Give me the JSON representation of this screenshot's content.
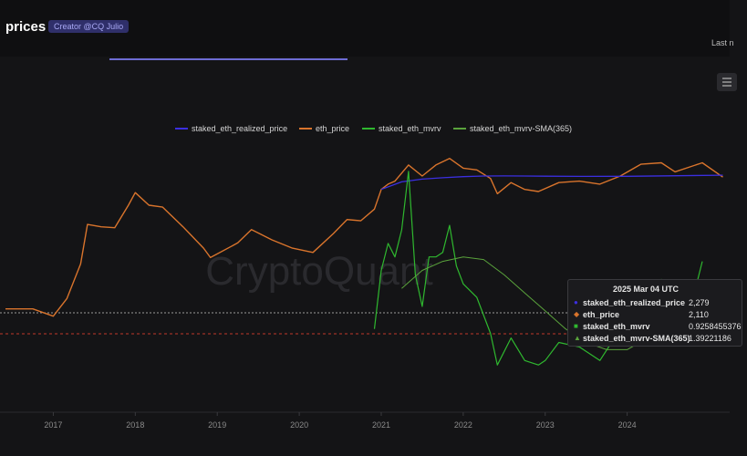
{
  "header": {
    "title": "prices",
    "creator_badge": "Creator @CQ Julio",
    "last_updated": "Last n"
  },
  "watermark": "CryptoQuant",
  "colors": {
    "realized": "#3b2fe0",
    "price": "#d9742c",
    "mvrv": "#2fb82f",
    "sma": "#5aa33c"
  },
  "chart_data": {
    "type": "line",
    "x_ticks": [
      "2017",
      "2018",
      "2019",
      "2020",
      "2021",
      "2022",
      "2023",
      "2024"
    ],
    "legend": [
      "staked_eth_realized_price",
      "eth_price",
      "staked_eth_mvrv",
      "staked_eth_mvrv-SMA(365)"
    ],
    "legend_position": "top-center",
    "grid": false,
    "series": [
      {
        "name": "staked_eth_realized_price",
        "x": [
          "2021-01",
          "2021-04",
          "2021-07",
          "2021-10",
          "2022-01",
          "2022-04",
          "2022-07",
          "2022-10",
          "2023-01",
          "2023-07",
          "2024-01",
          "2024-07",
          "2025-03"
        ],
        "values": [
          1300,
          1750,
          1950,
          2060,
          2150,
          2200,
          2210,
          2200,
          2190,
          2170,
          2180,
          2220,
          2279
        ]
      },
      {
        "name": "eth_price",
        "x": [
          "2016-06",
          "2016-10",
          "2017-01",
          "2017-03",
          "2017-05",
          "2017-06",
          "2017-08",
          "2017-10",
          "2017-12",
          "2018-01",
          "2018-03",
          "2018-05",
          "2018-08",
          "2018-11",
          "2018-12",
          "2019-04",
          "2019-06",
          "2019-09",
          "2019-12",
          "2020-03",
          "2020-06",
          "2020-08",
          "2020-10",
          "2020-12",
          "2021-01",
          "2021-02",
          "2021-03",
          "2021-05",
          "2021-07",
          "2021-09",
          "2021-11",
          "2022-01",
          "2022-03",
          "2022-05",
          "2022-06",
          "2022-08",
          "2022-10",
          "2022-12",
          "2023-03",
          "2023-06",
          "2023-09",
          "2023-12",
          "2024-03",
          "2024-06",
          "2024-08",
          "2024-12",
          "2025-03"
        ],
        "values": [
          12,
          12,
          9,
          18,
          70,
          330,
          300,
          290,
          700,
          1150,
          700,
          650,
          300,
          130,
          90,
          160,
          270,
          180,
          130,
          110,
          230,
          400,
          380,
          600,
          1300,
          1600,
          1800,
          3400,
          2200,
          3400,
          4400,
          3000,
          2800,
          2000,
          1100,
          1700,
          1300,
          1200,
          1700,
          1800,
          1600,
          2200,
          3500,
          3700,
          2600,
          3700,
          2110
        ]
      },
      {
        "name": "staked_eth_mvrv",
        "x": [
          "2020-12",
          "2021-01",
          "2021-02",
          "2021-03",
          "2021-04",
          "2021-05",
          "2021-06",
          "2021-07",
          "2021-08",
          "2021-09",
          "2021-10",
          "2021-11",
          "2021-12",
          "2022-01",
          "2022-03",
          "2022-05",
          "2022-06",
          "2022-08",
          "2022-10",
          "2022-12",
          "2023-01",
          "2023-03",
          "2023-06",
          "2023-09",
          "2023-12",
          "2024-01",
          "2024-03",
          "2024-06",
          "2024-08",
          "2024-10",
          "2024-12"
        ],
        "values": [
          0.95,
          1.6,
          1.9,
          1.75,
          2.05,
          2.7,
          1.55,
          1.2,
          1.75,
          1.75,
          1.8,
          2.1,
          1.65,
          1.45,
          1.3,
          0.9,
          0.55,
          0.85,
          0.6,
          0.55,
          0.6,
          0.8,
          0.75,
          0.6,
          0.95,
          1.05,
          1.45,
          1.5,
          1.15,
          1.1,
          1.7
        ]
      },
      {
        "name": "staked_eth_mvrv-SMA(365)",
        "x": [
          "2021-04",
          "2021-07",
          "2021-10",
          "2022-01",
          "2022-04",
          "2022-07",
          "2022-10",
          "2023-01",
          "2023-04",
          "2023-07",
          "2023-10",
          "2024-01",
          "2024-04",
          "2024-07",
          "2024-10",
          "2025-01",
          "2025-03"
        ],
        "values": [
          1.4,
          1.6,
          1.7,
          1.75,
          1.72,
          1.55,
          1.35,
          1.15,
          0.95,
          0.8,
          0.72,
          0.72,
          0.85,
          1.05,
          1.2,
          1.3,
          1.392
        ]
      }
    ],
    "reference_lines": [
      "white-dashed",
      "red-dashed"
    ],
    "tooltip": {
      "date": "2025 Mar 04 UTC",
      "rows": [
        {
          "symbol": "●",
          "name": "staked_eth_realized_price",
          "value": "2,279"
        },
        {
          "symbol": "◆",
          "name": "eth_price",
          "value": "2,110"
        },
        {
          "symbol": "■",
          "name": "staked_eth_mvrv",
          "value": "0.9258455376"
        },
        {
          "symbol": "▲",
          "name": "staked_eth_mvrv-SMA(365)",
          "value": "1.39221186"
        }
      ]
    }
  }
}
